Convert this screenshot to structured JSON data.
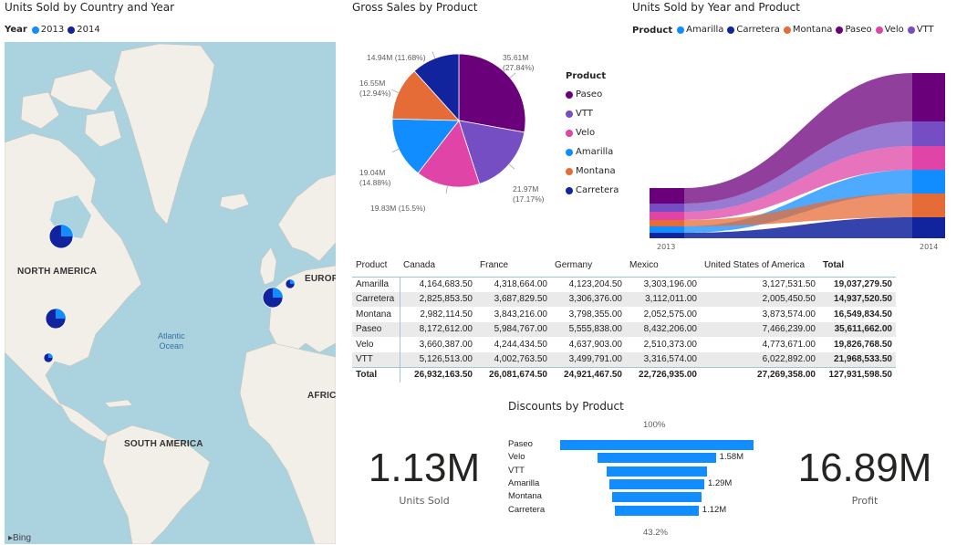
{
  "map": {
    "title": "Units Sold by Country and Year",
    "legend_title": "Year",
    "legend": [
      {
        "label": "2013",
        "color": "#118dff"
      },
      {
        "label": "2014",
        "color": "#12239e"
      }
    ],
    "labels": {
      "north_america": "NORTH AMERICA",
      "south_america": "SOUTH AMERICA",
      "europe": "EUROP",
      "africa": "AFRIC",
      "ocean_line1": "Atlantic",
      "ocean_line2": "Ocean"
    },
    "attribution": "Bing"
  },
  "pie": {
    "title": "Gross Sales by Product",
    "legend_title": "Product",
    "slices": [
      {
        "name": "Paseo",
        "value": 35.61,
        "percent": 27.84,
        "label_value": "35.61M",
        "label_pct": "(27.84%)",
        "color": "#6b007b"
      },
      {
        "name": "VTT",
        "value": 21.97,
        "percent": 17.17,
        "label_value": "21.97M",
        "label_pct": "(17.17%)",
        "color": "#744ec2"
      },
      {
        "name": "Velo",
        "value": 19.83,
        "percent": 15.5,
        "label_value": "19.83M (15.5%)",
        "label_pct": "",
        "color": "#e044a7"
      },
      {
        "name": "Amarilla",
        "value": 19.04,
        "percent": 14.88,
        "label_value": "19.04M",
        "label_pct": "(14.88%)",
        "color": "#118dff"
      },
      {
        "name": "Montana",
        "value": 16.55,
        "percent": 12.94,
        "label_value": "16.55M",
        "label_pct": "(12.94%)",
        "color": "#e66c37"
      },
      {
        "name": "Carretera",
        "value": 14.94,
        "percent": 11.68,
        "label_value": "14.94M (11.68%)",
        "label_pct": "",
        "color": "#12239e"
      }
    ]
  },
  "ribbon": {
    "title": "Units Sold by Year and Product",
    "legend_title": "Product",
    "legend": [
      {
        "label": "Amarilla",
        "color": "#118dff"
      },
      {
        "label": "Carretera",
        "color": "#12239e"
      },
      {
        "label": "Montana",
        "color": "#e66c37"
      },
      {
        "label": "Paseo",
        "color": "#6b007b"
      },
      {
        "label": "Velo",
        "color": "#e044a7"
      },
      {
        "label": "VTT",
        "color": "#744ec2"
      }
    ],
    "years": [
      "2013",
      "2014"
    ]
  },
  "table": {
    "headers": [
      "Product",
      "Canada",
      "France",
      "Germany",
      "Mexico",
      "United States of America",
      "Total"
    ],
    "rows": [
      {
        "product": "Amarilla",
        "canada": "4,164,683.50",
        "france": "4,318,664.00",
        "germany": "4,123,204.50",
        "mexico": "3,303,196.00",
        "usa": "3,127,531.50",
        "total": "19,037,279.50"
      },
      {
        "product": "Carretera",
        "canada": "2,825,853.50",
        "france": "3,687,829.50",
        "germany": "3,306,376.00",
        "mexico": "3,112,011.00",
        "usa": "2,005,450.50",
        "total": "14,937,520.50"
      },
      {
        "product": "Montana",
        "canada": "2,982,114.50",
        "france": "3,843,216.00",
        "germany": "3,798,355.00",
        "mexico": "2,052,575.00",
        "usa": "3,873,574.00",
        "total": "16,549,834.50"
      },
      {
        "product": "Paseo",
        "canada": "8,172,612.00",
        "france": "5,984,767.00",
        "germany": "5,555,838.00",
        "mexico": "8,432,206.00",
        "usa": "7,466,239.00",
        "total": "35,611,662.00"
      },
      {
        "product": "Velo",
        "canada": "3,660,387.00",
        "france": "4,244,434.50",
        "germany": "4,637,903.00",
        "mexico": "2,510,373.00",
        "usa": "4,773,671.00",
        "total": "19,826,768.50"
      },
      {
        "product": "VTT",
        "canada": "5,126,513.00",
        "france": "4,002,763.50",
        "germany": "3,499,791.00",
        "mexico": "3,316,574.00",
        "usa": "6,022,892.00",
        "total": "21,968,533.50"
      }
    ],
    "total_row": {
      "product": "Total",
      "canada": "26,932,163.50",
      "france": "26,081,674.50",
      "germany": "24,921,467.50",
      "mexico": "22,726,935.00",
      "usa": "27,269,358.00",
      "total": "127,931,598.50"
    }
  },
  "kpis": {
    "units_sold": {
      "value": "1.13M",
      "label": "Units Sold"
    },
    "profit": {
      "value": "16.89M",
      "label": "Profit"
    }
  },
  "funnel": {
    "title": "Discounts by Product",
    "top_pct": "100%",
    "bottom_pct": "43.2%",
    "bar_color": "#118dff",
    "categories": [
      {
        "name": "Paseo",
        "relative": 1.0,
        "label": ""
      },
      {
        "name": "Velo",
        "relative": 0.61,
        "label": "1.58M"
      },
      {
        "name": "VTT",
        "relative": 0.52,
        "label": ""
      },
      {
        "name": "Amarilla",
        "relative": 0.49,
        "label": "1.29M"
      },
      {
        "name": "Montana",
        "relative": 0.46,
        "label": ""
      },
      {
        "name": "Carretera",
        "relative": 0.432,
        "label": "1.12M"
      }
    ]
  }
}
